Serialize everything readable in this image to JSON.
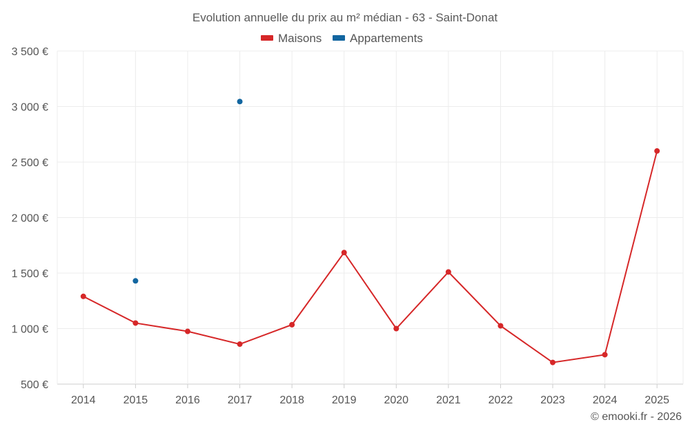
{
  "chart_data": {
    "type": "line",
    "title": "Evolution annuelle du prix au m² médian - 63 - Saint-Donat",
    "categories": [
      "2014",
      "2015",
      "2016",
      "2017",
      "2018",
      "2019",
      "2020",
      "2021",
      "2022",
      "2023",
      "2024",
      "2025"
    ],
    "series": [
      {
        "name": "Maisons",
        "color": "#d62728",
        "values": [
          1290,
          1050,
          975,
          860,
          1035,
          1685,
          1000,
          1510,
          1025,
          695,
          765,
          2600
        ]
      },
      {
        "name": "Appartements",
        "color": "#1266a0",
        "values": [
          null,
          1430,
          null,
          3045,
          null,
          null,
          null,
          null,
          null,
          null,
          null,
          null
        ]
      }
    ],
    "ylim": [
      500,
      3500
    ],
    "yticks": [
      500,
      1000,
      1500,
      2000,
      2500,
      3000,
      3500
    ],
    "ytick_labels": [
      "500 €",
      "1 000 €",
      "1 500 €",
      "2 000 €",
      "2 500 €",
      "3 000 €",
      "3 500 €"
    ],
    "xlabel": "",
    "ylabel": "",
    "grid": true,
    "legend": "top-center"
  },
  "credit": "© emooki.fr - 2026"
}
